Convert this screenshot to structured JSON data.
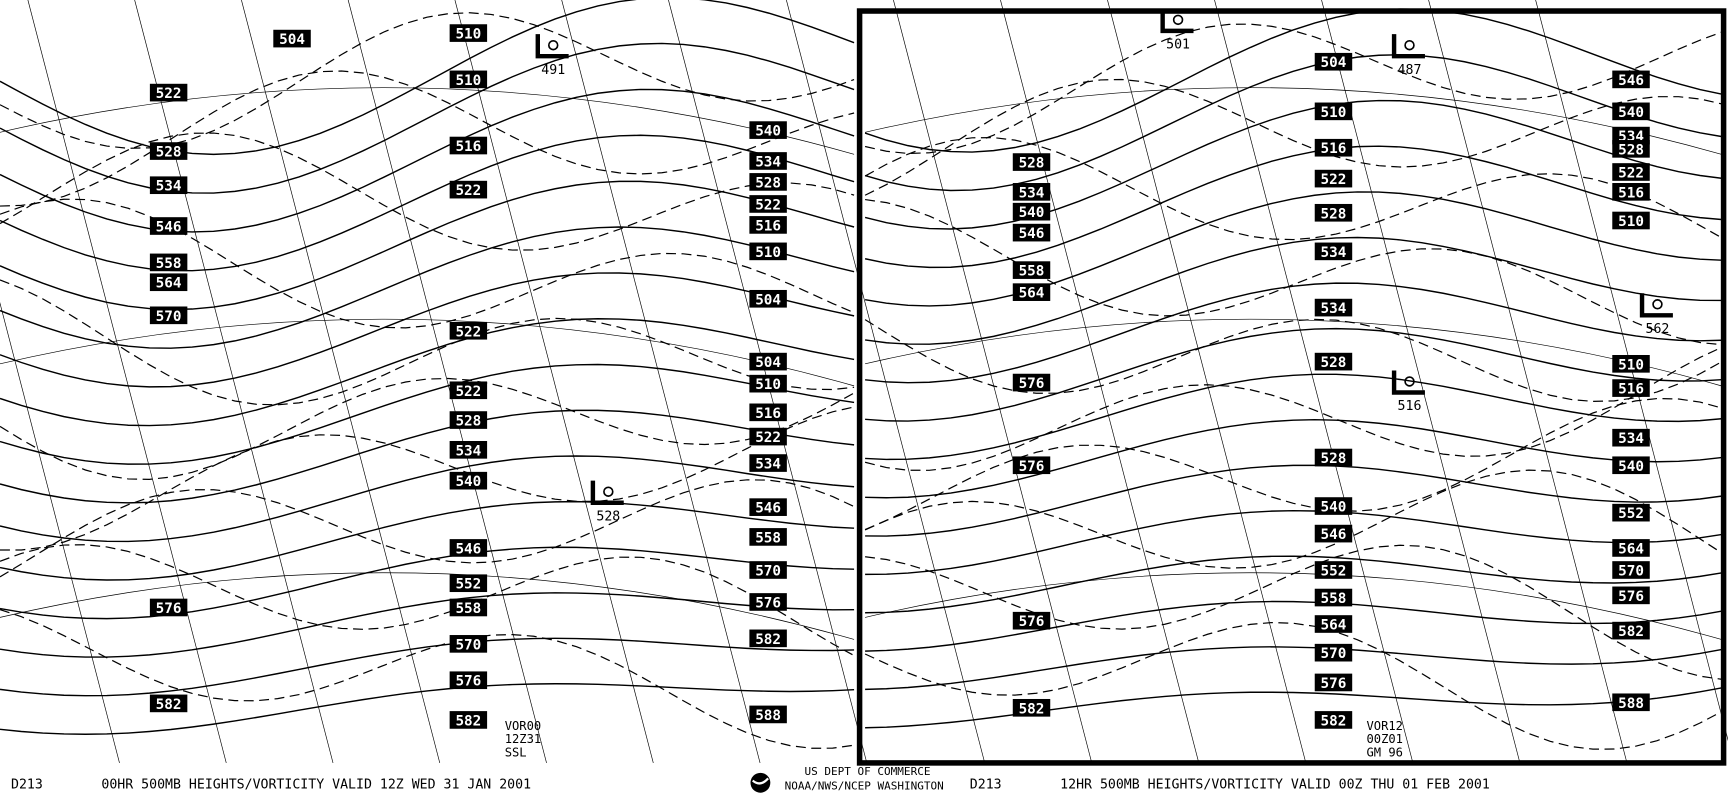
{
  "panels": [
    {
      "id": "D213",
      "caption": "00HR 500MB HEIGHTS/VORTICITY VALID 12Z WED 31 JAN 2001",
      "stamp": [
        "VOR00",
        "12Z31",
        "SSL"
      ],
      "lows": [
        "491",
        "528"
      ],
      "heights": [
        "510",
        "510",
        "516",
        "522",
        "522",
        "522",
        "528",
        "534",
        "540",
        "546",
        "552",
        "558",
        "570",
        "576",
        "582",
        "522",
        "528",
        "534",
        "546",
        "558",
        "564",
        "570",
        "576",
        "582",
        "540",
        "534",
        "528",
        "522",
        "516",
        "510",
        "504",
        "504",
        "510",
        "516",
        "522",
        "534",
        "546",
        "558",
        "570",
        "576",
        "582",
        "588",
        "504"
      ]
    },
    {
      "id": "D213",
      "caption": "12HR 500MB HEIGHTS/VORTICITY VALID 00Z THU 01 FEB 2001",
      "stamp": [
        "VOR12",
        "00Z01",
        "GM 96"
      ],
      "lows": [
        "501",
        "487",
        "516",
        "562"
      ],
      "heights": [
        "504",
        "510",
        "516",
        "522",
        "528",
        "534",
        "534",
        "528",
        "528",
        "540",
        "546",
        "552",
        "558",
        "564",
        "570",
        "576",
        "582",
        "528",
        "534",
        "540",
        "546",
        "558",
        "564",
        "576",
        "576",
        "576",
        "582",
        "546",
        "540",
        "534",
        "528",
        "522",
        "516",
        "510",
        "510",
        "516",
        "534",
        "540",
        "552",
        "564",
        "570",
        "576",
        "582",
        "588"
      ]
    }
  ],
  "agency": [
    "US DEPT OF COMMERCE",
    "NOAA/NWS/NCEP WASHINGTON"
  ]
}
